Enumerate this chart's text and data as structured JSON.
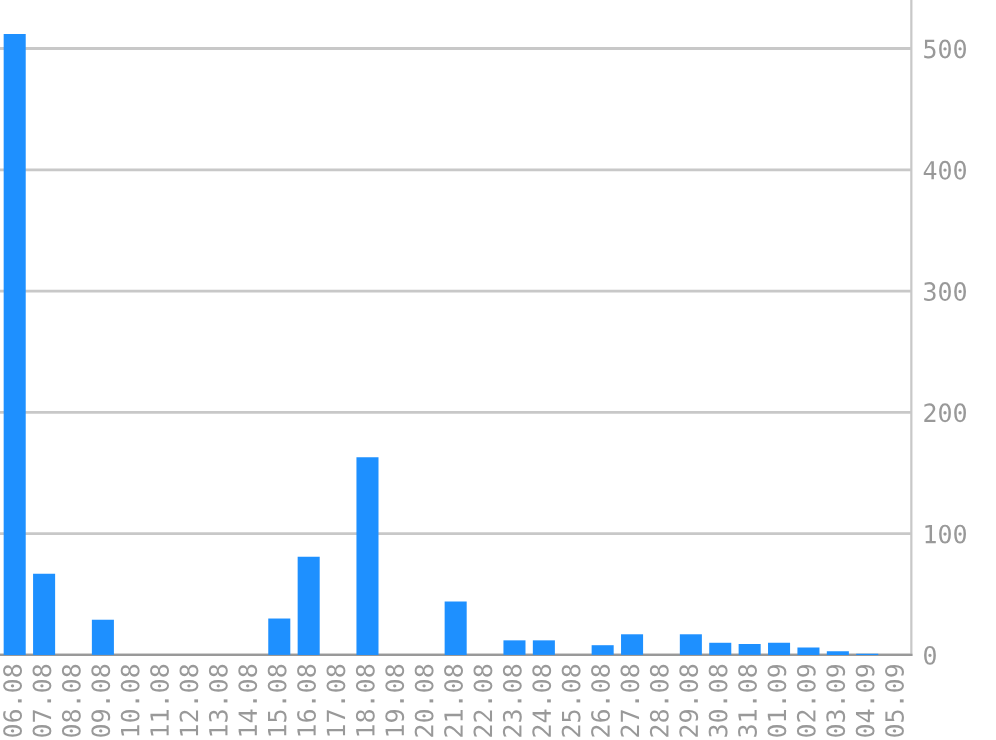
{
  "chart_data": {
    "type": "bar",
    "categories": [
      "06.08",
      "07.08",
      "08.08",
      "09.08",
      "10.08",
      "11.08",
      "12.08",
      "13.08",
      "14.08",
      "15.08",
      "16.08",
      "17.08",
      "18.08",
      "19.08",
      "20.08",
      "21.08",
      "22.08",
      "23.08",
      "24.08",
      "25.08",
      "26.08",
      "27.08",
      "28.08",
      "29.08",
      "30.08",
      "31.08",
      "01.09",
      "02.09",
      "03.09",
      "04.09",
      "05.09"
    ],
    "values": [
      512,
      67,
      0,
      29,
      0,
      0,
      0,
      0,
      0,
      30,
      81,
      0,
      163,
      0,
      0,
      44,
      0,
      12,
      12,
      0,
      8,
      17,
      0,
      17,
      10,
      9,
      10,
      6,
      3,
      1,
      0
    ],
    "color": "#1e90ff",
    "ylim": [
      0,
      540
    ],
    "yticks": [
      0,
      100,
      200,
      300,
      400,
      500
    ],
    "grid": "y",
    "legend": false
  }
}
